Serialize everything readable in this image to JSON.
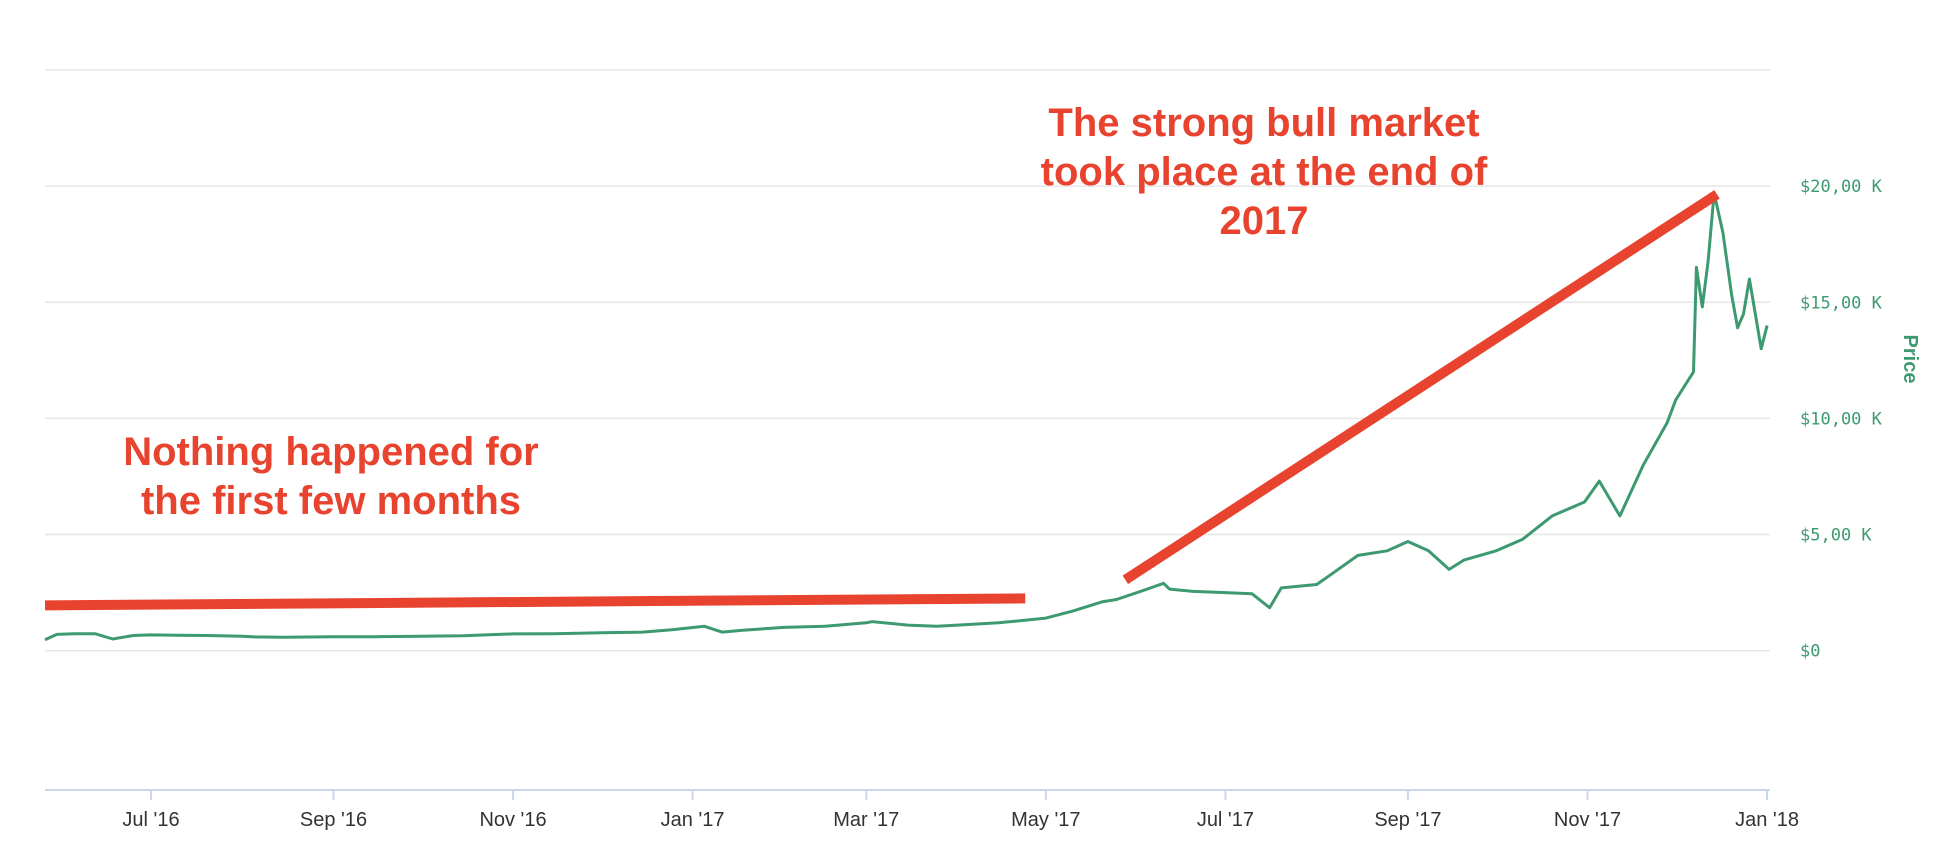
{
  "chart_data": {
    "type": "line",
    "title": "",
    "xlabel": "",
    "ylabel": "Price",
    "ylim": [
      -6000,
      25000
    ],
    "xlim": [
      "2016-05-26",
      "2018-01-02"
    ],
    "grid": true,
    "colors": {
      "series": "#3d9970",
      "annotation": "#e8432e",
      "grid": "#e6e6e6",
      "axis": "#ccd6eb"
    },
    "x_ticks": [
      {
        "date": "2016-07-01",
        "label": "Jul '16"
      },
      {
        "date": "2016-09-01",
        "label": "Sep '16"
      },
      {
        "date": "2016-11-01",
        "label": "Nov '16"
      },
      {
        "date": "2017-01-01",
        "label": "Jan '17"
      },
      {
        "date": "2017-03-01",
        "label": "Mar '17"
      },
      {
        "date": "2017-05-01",
        "label": "May '17"
      },
      {
        "date": "2017-07-01",
        "label": "Jul '17"
      },
      {
        "date": "2017-09-01",
        "label": "Sep '17"
      },
      {
        "date": "2017-11-01",
        "label": "Nov '17"
      },
      {
        "date": "2018-01-01",
        "label": "Jan '18"
      }
    ],
    "y_ticks": [
      {
        "value": 0,
        "label": "$0"
      },
      {
        "value": 5000,
        "label": "$5,00 K"
      },
      {
        "value": 10000,
        "label": "$10,00 K"
      },
      {
        "value": 15000,
        "label": "$15,00 K"
      },
      {
        "value": 20000,
        "label": "$20,00 K"
      }
    ],
    "y_gridlines": [
      -6000,
      0,
      5000,
      10000,
      15000,
      20000,
      25000
    ],
    "series": [
      {
        "x": [
          "2016-05-26",
          "2016-05-30",
          "2016-06-05",
          "2016-06-12",
          "2016-06-18",
          "2016-06-25",
          "2016-07-01",
          "2016-07-10",
          "2016-07-20",
          "2016-08-01",
          "2016-08-05",
          "2016-08-15",
          "2016-09-01",
          "2016-09-15",
          "2016-10-01",
          "2016-10-15",
          "2016-11-01",
          "2016-11-15",
          "2016-12-01",
          "2016-12-15",
          "2016-12-25",
          "2017-01-05",
          "2017-01-11",
          "2017-01-18",
          "2017-02-01",
          "2017-02-15",
          "2017-03-01",
          "2017-03-03",
          "2017-03-15",
          "2017-03-25",
          "2017-04-01",
          "2017-04-15",
          "2017-05-01",
          "2017-05-10",
          "2017-05-20",
          "2017-05-25",
          "2017-06-01",
          "2017-06-10",
          "2017-06-12",
          "2017-06-20",
          "2017-07-01",
          "2017-07-10",
          "2017-07-16",
          "2017-07-20",
          "2017-08-01",
          "2017-08-05",
          "2017-08-15",
          "2017-08-25",
          "2017-09-01",
          "2017-09-08",
          "2017-09-15",
          "2017-09-20",
          "2017-10-01",
          "2017-10-10",
          "2017-10-20",
          "2017-10-31",
          "2017-11-05",
          "2017-11-12",
          "2017-11-20",
          "2017-11-28",
          "2017-12-01",
          "2017-12-07",
          "2017-12-08",
          "2017-12-10",
          "2017-12-12",
          "2017-12-14",
          "2017-12-17",
          "2017-12-20",
          "2017-12-22",
          "2017-12-24",
          "2017-12-26",
          "2017-12-28",
          "2017-12-30",
          "2018-01-01"
        ],
        "y": [
          470,
          700,
          730,
          730,
          500,
          650,
          680,
          660,
          650,
          620,
          590,
          580,
          600,
          600,
          620,
          640,
          720,
          730,
          770,
          800,
          900,
          1050,
          800,
          880,
          1000,
          1050,
          1200,
          1250,
          1100,
          1050,
          1100,
          1200,
          1400,
          1700,
          2100,
          2200,
          2500,
          2900,
          2650,
          2550,
          2500,
          2450,
          1850,
          2700,
          2850,
          3200,
          4100,
          4300,
          4700,
          4300,
          3500,
          3900,
          4300,
          4800,
          5800,
          6400,
          7300,
          5800,
          8000,
          9800,
          10800,
          12000,
          16500,
          14800,
          16800,
          19700,
          18000,
          15300,
          13900,
          14500,
          16000,
          14500,
          13000,
          14000
        ]
      }
    ]
  },
  "annotations": {
    "left_line1": "Nothing happened for",
    "left_line2": "the first few months",
    "right_line1": "The strong bull market",
    "right_line2": "took place at the end of",
    "right_line3": "2017"
  },
  "trend_lines": [
    {
      "name": "flat-trend-line",
      "from": {
        "date": "2016-05-26",
        "value": 1950
      },
      "to": {
        "date": "2017-04-24",
        "value": 2250
      }
    },
    {
      "name": "bull-trend-line",
      "from": {
        "date": "2017-05-28",
        "value": 3050
      },
      "to": {
        "date": "2017-12-15",
        "value": 19650
      }
    }
  ]
}
